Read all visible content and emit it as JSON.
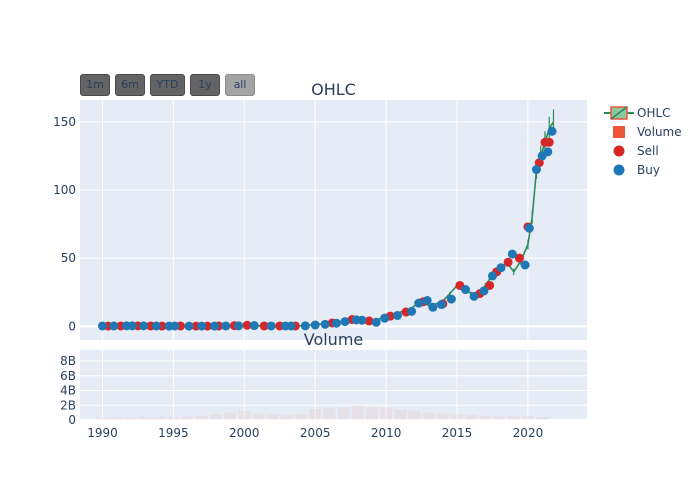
{
  "range_buttons": [
    {
      "label": "1m",
      "active": false
    },
    {
      "label": "6m",
      "active": false
    },
    {
      "label": "YTD",
      "active": false
    },
    {
      "label": "1y",
      "active": false
    },
    {
      "label": "all",
      "active": true
    }
  ],
  "legend": [
    {
      "label": "OHLC",
      "symbol": "ohlc-box-icon"
    },
    {
      "label": "Volume",
      "symbol": "square-icon"
    },
    {
      "label": "Sell",
      "symbol": "dot-icon"
    },
    {
      "label": "Buy",
      "symbol": "dot-icon"
    }
  ],
  "colors": {
    "plot_bg": "#e5ecf6",
    "grid": "#ffffff",
    "text": "#2a3f5f",
    "ohlc_line": "#2e8b57",
    "ohlc_fill": "#88c9a0",
    "legend_ohlc_border": "#ef553b",
    "volume": "#ef553b",
    "sell": "#d62728",
    "buy": "#1f77b4"
  },
  "chart_data": [
    {
      "type": "line",
      "title": "OHLC",
      "x_axis": {
        "type": "date",
        "range": [
          "1988-06-01",
          "2024-03-01"
        ],
        "ticks": [
          "1990",
          "1995",
          "2000",
          "2005",
          "2010",
          "2015",
          "2020"
        ]
      },
      "y_axis": {
        "range": [
          -10,
          166
        ],
        "ticks": [
          0,
          50,
          100,
          150
        ]
      },
      "grid": true,
      "legend_position": "right",
      "series": [
        {
          "name": "OHLC",
          "x": [
            1990.0,
            1991.0,
            1992.0,
            1993.0,
            1994.0,
            1995.0,
            1996.0,
            1997.0,
            1998.0,
            1999.0,
            2000.0,
            2000.5,
            2001.0,
            2002.0,
            2003.0,
            2004.0,
            2004.5,
            2005.0,
            2005.5,
            2006.0,
            2006.5,
            2007.0,
            2007.5,
            2008.0,
            2008.5,
            2009.0,
            2009.5,
            2010.0,
            2010.5,
            2011.0,
            2011.5,
            2012.0,
            2012.5,
            2013.0,
            2013.5,
            2014.0,
            2014.5,
            2015.0,
            2015.5,
            2016.0,
            2016.5,
            2017.0,
            2017.5,
            2018.0,
            2018.5,
            2019.0,
            2019.5,
            2020.0,
            2020.3,
            2020.6,
            2020.9,
            2021.2,
            2021.5,
            2021.8
          ],
          "values": [
            0.3,
            0.4,
            0.4,
            0.3,
            0.2,
            0.3,
            0.2,
            0.2,
            0.3,
            0.5,
            0.9,
            0.4,
            0.3,
            0.3,
            0.3,
            0.5,
            0.8,
            1.3,
            1.8,
            2.5,
            2.2,
            3.5,
            4.5,
            5.0,
            4.0,
            3.0,
            5.5,
            7.0,
            8.5,
            10.5,
            11.5,
            15.0,
            19.0,
            15.0,
            16.5,
            18.5,
            24.0,
            30.0,
            27.5,
            24.0,
            25.0,
            30.0,
            38.0,
            42.0,
            47.0,
            40.0,
            48.0,
            60.0,
            80.0,
            115.0,
            125.0,
            135.0,
            145.0,
            150.0
          ]
        },
        {
          "name": "Sell",
          "x": [
            1990.4,
            1991.3,
            1992.5,
            1993.4,
            1994.2,
            1995.5,
            1996.6,
            1997.4,
            1998.2,
            1999.3,
            2000.2,
            2001.4,
            2002.5,
            2003.6,
            2006.2,
            2007.6,
            2008.8,
            2010.3,
            2011.4,
            2012.6,
            2014.0,
            2015.2,
            2016.6,
            2017.3,
            2017.8,
            2018.6,
            2019.4,
            2020.0,
            2020.8,
            2021.2,
            2021.5
          ],
          "values": [
            0.2,
            0.3,
            0.4,
            0.3,
            0.2,
            0.3,
            0.2,
            0.2,
            0.3,
            0.5,
            0.8,
            0.3,
            0.3,
            0.3,
            2.5,
            5.0,
            4.0,
            7.5,
            10.5,
            18.0,
            16.5,
            30.0,
            24.0,
            30.0,
            40.0,
            47.0,
            50.0,
            73.0,
            120.0,
            135.0,
            135.0
          ]
        },
        {
          "name": "Buy",
          "x": [
            1990.0,
            1990.8,
            1991.7,
            1992.1,
            1992.9,
            1993.8,
            1994.7,
            1995.1,
            1996.1,
            1997.0,
            1997.9,
            1998.7,
            1999.6,
            2000.7,
            2001.9,
            2002.9,
            2003.3,
            2004.3,
            2005.0,
            2005.7,
            2006.5,
            2007.1,
            2007.9,
            2008.3,
            2009.3,
            2009.9,
            2010.8,
            2011.8,
            2012.3,
            2012.9,
            2013.3,
            2013.9,
            2014.6,
            2015.6,
            2016.2,
            2016.9,
            2017.5,
            2018.1,
            2018.9,
            2019.8,
            2020.1,
            2020.6,
            2021.0,
            2021.4,
            2021.7
          ],
          "values": [
            0.3,
            0.3,
            0.4,
            0.4,
            0.4,
            0.3,
            0.2,
            0.3,
            0.2,
            0.2,
            0.2,
            0.3,
            0.4,
            0.6,
            0.3,
            0.3,
            0.3,
            0.4,
            1.0,
            1.5,
            2.3,
            3.5,
            4.8,
            4.5,
            3.0,
            6.0,
            8.0,
            11.0,
            17.0,
            19.0,
            14.0,
            16.0,
            20.0,
            27.0,
            22.0,
            26.0,
            37.0,
            43.0,
            53.0,
            45.0,
            72.0,
            115.0,
            125.0,
            128.0,
            143.0
          ]
        }
      ]
    },
    {
      "type": "bar",
      "title": "Volume",
      "x_axis": {
        "type": "date",
        "range": [
          "1988-06-01",
          "2024-03-01"
        ],
        "ticks": [
          "1990",
          "1995",
          "2000",
          "2005",
          "2010",
          "2015",
          "2020"
        ]
      },
      "y_axis": {
        "range": [
          0,
          9500000000
        ],
        "ticks": [
          "0",
          "2B",
          "4B",
          "6B",
          "8B"
        ]
      },
      "grid": true,
      "series": [
        {
          "name": "Volume",
          "x": [
            1990,
            1991,
            1992,
            1993,
            1994,
            1995,
            1996,
            1997,
            1998,
            1999,
            2000,
            2001,
            2002,
            2003,
            2004,
            2005,
            2006,
            2007,
            2008,
            2009,
            2010,
            2011,
            2012,
            2013,
            2014,
            2015,
            2016,
            2017,
            2018,
            2019,
            2020,
            2021
          ],
          "values": [
            300000000.0,
            300000000.0,
            350000000.0,
            400000000.0,
            400000000.0,
            450000000.0,
            500000000.0,
            600000000.0,
            800000000.0,
            1000000000.0,
            1200000000.0,
            900000000.0,
            800000000.0,
            700000000.0,
            800000000.0,
            1500000000.0,
            1600000000.0,
            1700000000.0,
            2000000000.0,
            1800000000.0,
            1600000000.0,
            1400000000.0,
            1200000000.0,
            1000000000.0,
            900000000.0,
            800000000.0,
            700000000.0,
            600000000.0,
            500000000.0,
            500000000.0,
            600000000.0,
            400000000.0
          ]
        }
      ]
    }
  ]
}
